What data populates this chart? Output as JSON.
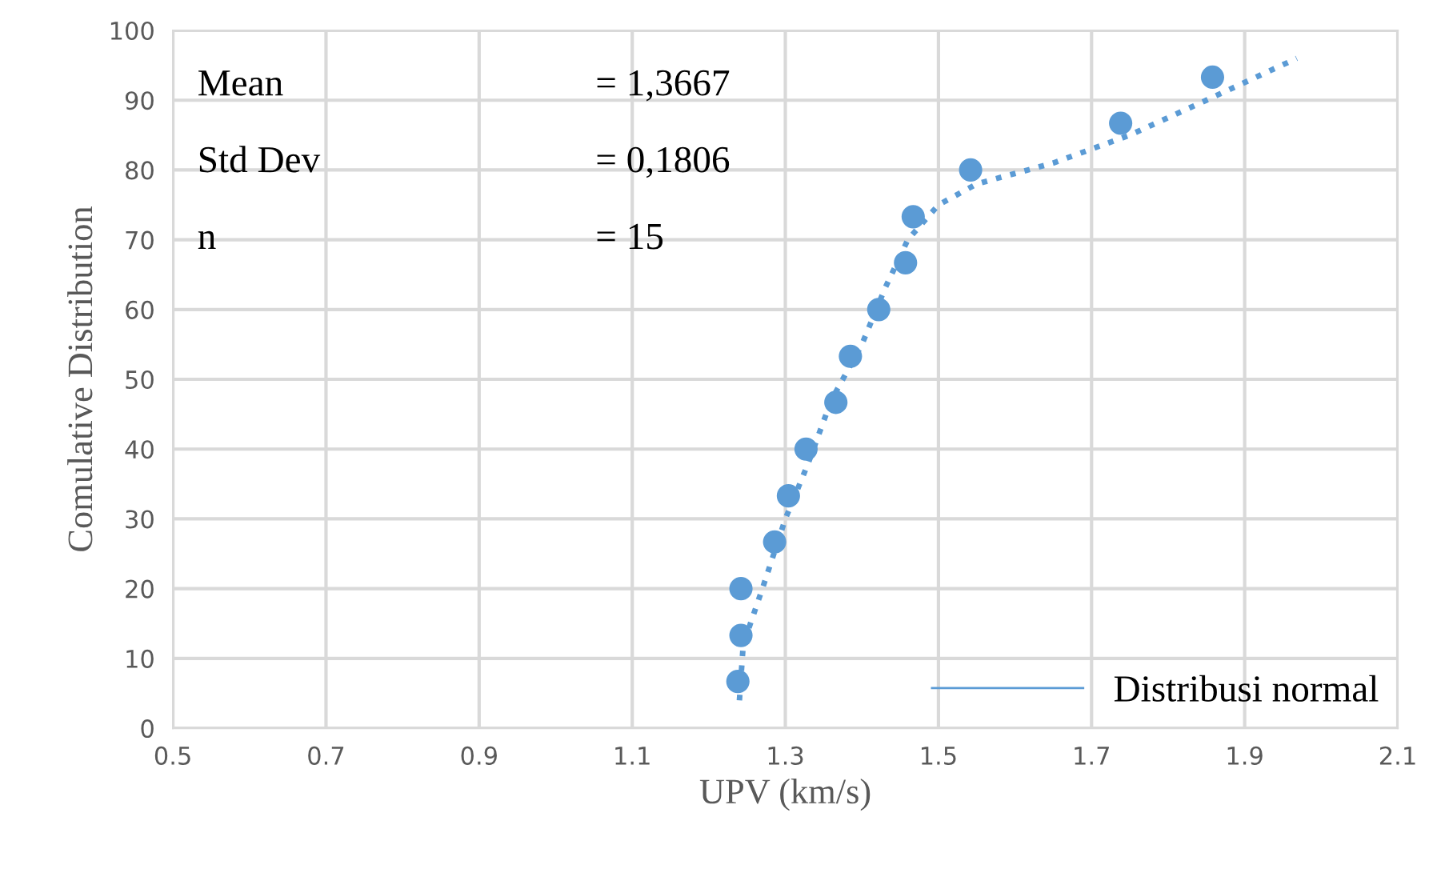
{
  "chart_data": {
    "type": "scatter",
    "xlabel": "UPV (km/s)",
    "ylabel": "Comulative Distribution",
    "annotations": [
      "Mean",
      "= 1,3667",
      "Std Dev",
      "= 0,1806",
      "n",
      "= 15"
    ],
    "series": [
      {
        "color": "#5b9bd5",
        "marker": "circle",
        "x": [
          1.238,
          1.242,
          1.242,
          1.286,
          1.304,
          1.327,
          1.366,
          1.385,
          1.422,
          1.457,
          1.467,
          1.542,
          1.738,
          1.858
        ],
        "values": [
          6.7,
          13.3,
          20,
          26.7,
          33.3,
          40,
          46.7,
          53.3,
          60,
          66.7,
          73.3,
          80,
          86.7,
          93.3
        ]
      },
      {
        "type": "line",
        "name": "Distribusi normal",
        "color": "#5b9bd5",
        "line_style": "dotted",
        "x": [
          1.24,
          1.245,
          1.27,
          1.3,
          1.33,
          1.36,
          1.4,
          1.43,
          1.46,
          1.5,
          1.55,
          1.65,
          1.75,
          1.85,
          1.968
        ],
        "values": [
          4,
          12,
          20,
          30,
          38,
          47,
          55,
          63,
          70,
          75,
          78,
          81,
          85,
          90,
          96
        ]
      }
    ],
    "xlim": [
      0.5,
      2.1
    ],
    "xticks": [
      0.5,
      0.7,
      0.9,
      1.1,
      1.3,
      1.5,
      1.7,
      1.9,
      2.1
    ],
    "ylim": [
      0,
      100
    ],
    "yticks": [
      0,
      10,
      20,
      30,
      40,
      50,
      60,
      70,
      80,
      90,
      100
    ],
    "grid": true,
    "legend": "bottom right"
  }
}
